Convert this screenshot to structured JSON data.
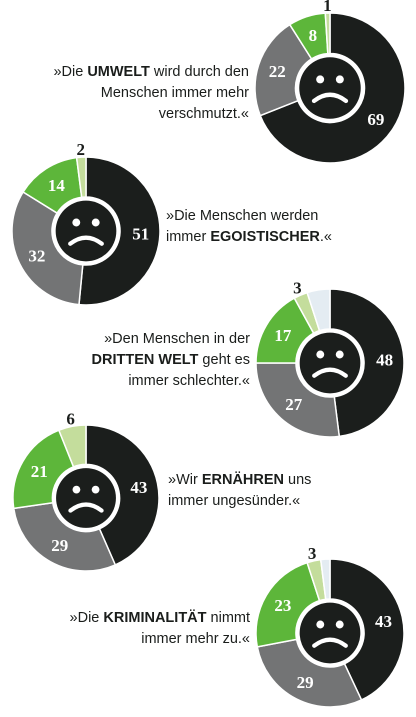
{
  "colors": {
    "dark": "#1b1e1c",
    "grey": "#737475",
    "green": "#5db63a",
    "light_green": "#c4dd9c",
    "pale_blue": "#e4ecf2",
    "face": "#ffffff",
    "label_on_dark": "#ffffff",
    "label_outside": "#1b1e1c"
  },
  "chart_data": [
    {
      "type": "pie",
      "caption": {
        "pre": "»Die ",
        "strong": "UMWELT",
        "post": " wird durch den Menschen immer mehr verschmutzt.«"
      },
      "slices": [
        {
          "value": 69,
          "color": "dark",
          "label": "69"
        },
        {
          "value": 22,
          "color": "grey",
          "label": "22"
        },
        {
          "value": 8,
          "color": "green",
          "label": "8"
        },
        {
          "value": 1,
          "color": "light_green",
          "label": "1"
        }
      ]
    },
    {
      "type": "pie",
      "caption": {
        "pre": "»Die Menschen werden immer ",
        "strong": "EGOISTISCHER",
        "post": ".«"
      },
      "slices": [
        {
          "value": 51,
          "color": "dark",
          "label": "51"
        },
        {
          "value": 32,
          "color": "grey",
          "label": "32"
        },
        {
          "value": 14,
          "color": "green",
          "label": "14"
        },
        {
          "value": 2,
          "color": "light_green",
          "label": "2"
        }
      ]
    },
    {
      "type": "pie",
      "caption": {
        "pre": "»Den Menschen in der ",
        "strong": "DRITTEN WELT",
        "post": " geht es immer schlechter.«"
      },
      "slices": [
        {
          "value": 48,
          "color": "dark",
          "label": "48"
        },
        {
          "value": 27,
          "color": "grey",
          "label": "27"
        },
        {
          "value": 17,
          "color": "green",
          "label": "17"
        },
        {
          "value": 3,
          "color": "light_green",
          "label": "3"
        },
        {
          "value": 5,
          "color": "pale_blue",
          "label": ""
        }
      ]
    },
    {
      "type": "pie",
      "caption": {
        "pre": "»Wir ",
        "strong": "ERNÄHREN",
        "post": " uns immer ungesünder.«"
      },
      "slices": [
        {
          "value": 43,
          "color": "dark",
          "label": "43"
        },
        {
          "value": 29,
          "color": "grey",
          "label": "29"
        },
        {
          "value": 21,
          "color": "green",
          "label": "21"
        },
        {
          "value": 6,
          "color": "light_green",
          "label": "6"
        }
      ]
    },
    {
      "type": "pie",
      "caption": {
        "pre": "»Die ",
        "strong": "KRIMINALITÄT",
        "post": " nimmt immer mehr zu.«"
      },
      "slices": [
        {
          "value": 43,
          "color": "dark",
          "label": "43"
        },
        {
          "value": 29,
          "color": "grey",
          "label": "29"
        },
        {
          "value": 23,
          "color": "green",
          "label": "23"
        },
        {
          "value": 3,
          "color": "light_green",
          "label": "3"
        },
        {
          "value": 2,
          "color": "pale_blue",
          "label": ""
        }
      ]
    }
  ]
}
